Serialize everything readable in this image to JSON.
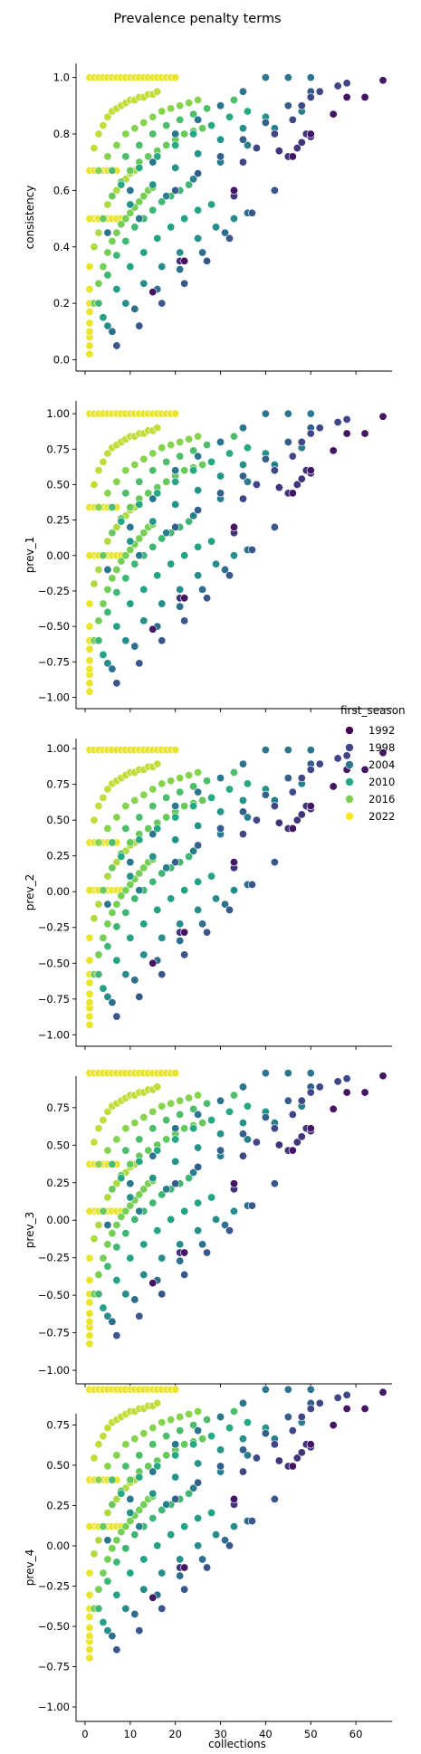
{
  "chart_data": {
    "type": "scatter",
    "title": "Prevalence penalty terms",
    "xlabel": "collections",
    "x_ticks": [
      0,
      10,
      20,
      30,
      40,
      50,
      60
    ],
    "xlim": [
      -2,
      68
    ],
    "hue": {
      "title": "first_season",
      "levels": [
        1992,
        1998,
        2004,
        2010,
        2016,
        2022
      ],
      "colors": [
        "#440154",
        "#414487",
        "#2a788e",
        "#22a884",
        "#7ad151",
        "#fde725"
      ],
      "range": [
        1990,
        2023
      ]
    },
    "legend_position": "right",
    "panels": [
      {
        "ylabel": "consistency",
        "ylim": [
          -0.04,
          1.05
        ],
        "y_ticks": [
          0.0,
          0.2,
          0.4,
          0.6,
          0.8,
          1.0
        ],
        "tick_labels": [
          "0.0",
          "0.2",
          "0.4",
          "0.6",
          "0.8",
          "1.0"
        ],
        "offset": 0.0,
        "scale": 1.0
      },
      {
        "ylabel": "prev_1",
        "ylim": [
          -1.08,
          1.09
        ],
        "y_ticks": [
          -1.0,
          -0.75,
          -0.5,
          -0.25,
          0.0,
          0.25,
          0.5,
          0.75,
          1.0
        ],
        "tick_labels": [
          "−1.00",
          "−0.75",
          "−0.50",
          "−0.25",
          "0.00",
          "0.25",
          "0.50",
          "0.75",
          "1.00"
        ],
        "offset": 0.0,
        "scale": 1.0
      },
      {
        "ylabel": "prev_2",
        "ylim": [
          -1.08,
          1.07
        ],
        "y_ticks": [
          -1.0,
          -0.75,
          -0.5,
          -0.25,
          0.0,
          0.25,
          0.5,
          0.75,
          1.0
        ],
        "tick_labels": [
          "−1.00",
          "−0.75",
          "−0.50",
          "−0.25",
          "0.00",
          "0.25",
          "0.50",
          "0.75",
          "1.00"
        ],
        "offset": 0.02,
        "scale": 0.97
      },
      {
        "ylabel": "prev_3",
        "ylim": [
          -1.09,
          0.96
        ],
        "y_ticks": [
          -1.0,
          -0.75,
          -0.5,
          -0.25,
          0.0,
          0.25,
          0.5,
          0.75
        ],
        "tick_labels": [
          "−1.00",
          "−0.75",
          "−0.50",
          "−0.25",
          "0.00",
          "0.25",
          "0.50",
          "0.75"
        ],
        "offset": 0.12,
        "scale": 0.86
      },
      {
        "ylabel": "prev_4",
        "ylim": [
          -1.09,
          0.82
        ],
        "y_ticks": [
          -1.0,
          -0.75,
          -0.5,
          -0.25,
          0.0,
          0.25,
          0.5,
          0.75
        ],
        "tick_labels": [
          "−1.00",
          "−0.75",
          "−0.50",
          "−0.25",
          "0.00",
          "0.25",
          "0.50",
          "0.75"
        ],
        "offset": 0.24,
        "scale": 0.73
      }
    ],
    "series": [
      {
        "first_season": 2022,
        "x": [
          1,
          2,
          3,
          4,
          5,
          6,
          7,
          8,
          9,
          10,
          11,
          12,
          13,
          14,
          15,
          16,
          17,
          18,
          19,
          20
        ],
        "consistency": [
          1.0,
          1.0,
          1.0,
          1.0,
          1.0,
          1.0,
          1.0,
          1.0,
          1.0,
          1.0,
          1.0,
          1.0,
          1.0,
          1.0,
          1.0,
          1.0,
          1.0,
          1.0,
          1.0,
          1.0
        ]
      },
      {
        "first_season": 2022,
        "x": [
          1,
          2,
          3,
          4,
          5,
          6,
          7,
          8
        ],
        "consistency": [
          0.5,
          0.5,
          0.5,
          0.5,
          0.5,
          0.5,
          0.5,
          0.5
        ]
      },
      {
        "first_season": 2022,
        "x": [
          1,
          2,
          3,
          4,
          5,
          6,
          7
        ],
        "consistency": [
          0.67,
          0.67,
          0.67,
          0.67,
          0.67,
          0.67,
          0.67
        ]
      },
      {
        "first_season": 2022,
        "x": [
          1,
          1,
          1,
          1,
          1,
          1,
          1,
          1,
          1,
          1
        ],
        "consistency": [
          0.02,
          0.05,
          0.08,
          0.1,
          0.13,
          0.17,
          0.2,
          0.25,
          0.33,
          0.5
        ]
      },
      {
        "first_season": 2020,
        "x": [
          2,
          3,
          4,
          5,
          6,
          7,
          8,
          9,
          10,
          11,
          12,
          13,
          14,
          15,
          16
        ],
        "consistency": [
          0.75,
          0.8,
          0.83,
          0.86,
          0.88,
          0.89,
          0.9,
          0.91,
          0.92,
          0.92,
          0.93,
          0.93,
          0.94,
          0.94,
          0.95
        ]
      },
      {
        "first_season": 2019,
        "x": [
          2,
          3,
          4,
          5,
          6,
          7,
          8,
          9,
          10,
          11,
          12
        ],
        "consistency": [
          0.4,
          0.45,
          0.5,
          0.55,
          0.58,
          0.6,
          0.62,
          0.64,
          0.66,
          0.67,
          0.68
        ]
      },
      {
        "first_season": 2017,
        "x": [
          3,
          5,
          7,
          9,
          11,
          13,
          15,
          17,
          19,
          21,
          23,
          25
        ],
        "consistency": [
          0.67,
          0.72,
          0.76,
          0.8,
          0.82,
          0.84,
          0.86,
          0.88,
          0.89,
          0.9,
          0.91,
          0.92
        ]
      },
      {
        "first_season": 2016,
        "x": [
          2,
          3,
          4,
          5,
          6,
          7,
          8,
          9,
          10,
          11,
          12,
          13,
          14,
          15
        ],
        "consistency": [
          0.2,
          0.27,
          0.33,
          0.38,
          0.42,
          0.45,
          0.48,
          0.5,
          0.52,
          0.54,
          0.56,
          0.58,
          0.6,
          0.61
        ]
      },
      {
        "first_season": 2015,
        "x": [
          4,
          6,
          8,
          10,
          12,
          14,
          16,
          18,
          20,
          22,
          24,
          26,
          28
        ],
        "consistency": [
          0.5,
          0.58,
          0.63,
          0.67,
          0.7,
          0.72,
          0.74,
          0.76,
          0.78,
          0.8,
          0.81,
          0.82,
          0.83
        ]
      },
      {
        "first_season": 2013,
        "x": [
          6,
          9,
          12,
          15,
          18,
          21,
          24,
          27,
          30,
          33
        ],
        "consistency": [
          0.67,
          0.72,
          0.76,
          0.8,
          0.83,
          0.85,
          0.87,
          0.89,
          0.9,
          0.92
        ]
      },
      {
        "first_season": 2012,
        "x": [
          3,
          5,
          7,
          9,
          11,
          13,
          15,
          17,
          19,
          21,
          23
        ],
        "consistency": [
          0.2,
          0.3,
          0.37,
          0.42,
          0.47,
          0.5,
          0.53,
          0.56,
          0.58,
          0.6,
          0.62
        ]
      },
      {
        "first_season": 2010,
        "x": [
          8,
          12,
          16,
          20,
          24,
          28,
          32,
          36
        ],
        "consistency": [
          0.62,
          0.68,
          0.72,
          0.76,
          0.8,
          0.83,
          0.86,
          0.88
        ]
      },
      {
        "first_season": 2009,
        "x": [
          4,
          7,
          10,
          13,
          16,
          19,
          22,
          25,
          28
        ],
        "consistency": [
          0.15,
          0.25,
          0.33,
          0.38,
          0.43,
          0.47,
          0.5,
          0.53,
          0.55
        ]
      },
      {
        "first_season": 2007,
        "x": [
          10,
          15,
          20,
          25,
          30,
          35,
          40
        ],
        "consistency": [
          0.55,
          0.62,
          0.68,
          0.73,
          0.78,
          0.82,
          0.86
        ]
      },
      {
        "first_season": 2006,
        "x": [
          5,
          9,
          13,
          17,
          21,
          25,
          29,
          33
        ],
        "consistency": [
          0.12,
          0.2,
          0.27,
          0.33,
          0.38,
          0.43,
          0.47,
          0.5
        ]
      },
      {
        "first_season": 2004,
        "x": [
          12,
          18,
          24,
          30,
          36,
          42,
          48
        ],
        "consistency": [
          0.5,
          0.58,
          0.64,
          0.7,
          0.76,
          0.82,
          0.88
        ]
      },
      {
        "first_season": 2002,
        "x": [
          6,
          11,
          16,
          21,
          26,
          31,
          36
        ],
        "consistency": [
          0.1,
          0.18,
          0.25,
          0.32,
          0.38,
          0.45,
          0.52
        ]
      },
      {
        "first_season": 2000,
        "x": [
          20,
          25,
          30,
          35,
          40,
          45,
          50
        ],
        "consistency": [
          0.6,
          0.66,
          0.72,
          0.78,
          0.84,
          0.9,
          0.95
        ]
      },
      {
        "first_season": 1999,
        "x": [
          7,
          12,
          17,
          22,
          27,
          32,
          37,
          42
        ],
        "consistency": [
          0.05,
          0.12,
          0.2,
          0.27,
          0.35,
          0.43,
          0.52,
          0.6
        ]
      },
      {
        "first_season": 2003,
        "x": [
          5,
          10,
          15,
          20,
          25,
          30,
          35,
          40,
          45,
          50
        ],
        "consistency": [
          0.45,
          0.6,
          0.7,
          0.8,
          0.85,
          0.9,
          0.95,
          1.0,
          1.0,
          1.0
        ]
      },
      {
        "first_season": 1997,
        "x": [
          35,
          38,
          42,
          46,
          48,
          50,
          52,
          56,
          58
        ],
        "consistency": [
          0.7,
          0.75,
          0.8,
          0.85,
          0.9,
          0.93,
          0.95,
          0.97,
          0.98
        ]
      },
      {
        "first_season": 1995,
        "x": [
          21,
          33,
          43,
          45,
          47,
          48,
          49,
          50
        ],
        "consistency": [
          0.35,
          0.58,
          0.74,
          0.72,
          0.75,
          0.77,
          0.8,
          0.79
        ]
      },
      {
        "first_season": 1992,
        "x": [
          15,
          22,
          33,
          46,
          50,
          55,
          58,
          62,
          66
        ],
        "consistency": [
          0.24,
          0.35,
          0.6,
          0.72,
          0.8,
          0.87,
          0.93,
          0.93,
          0.99
        ]
      }
    ]
  }
}
